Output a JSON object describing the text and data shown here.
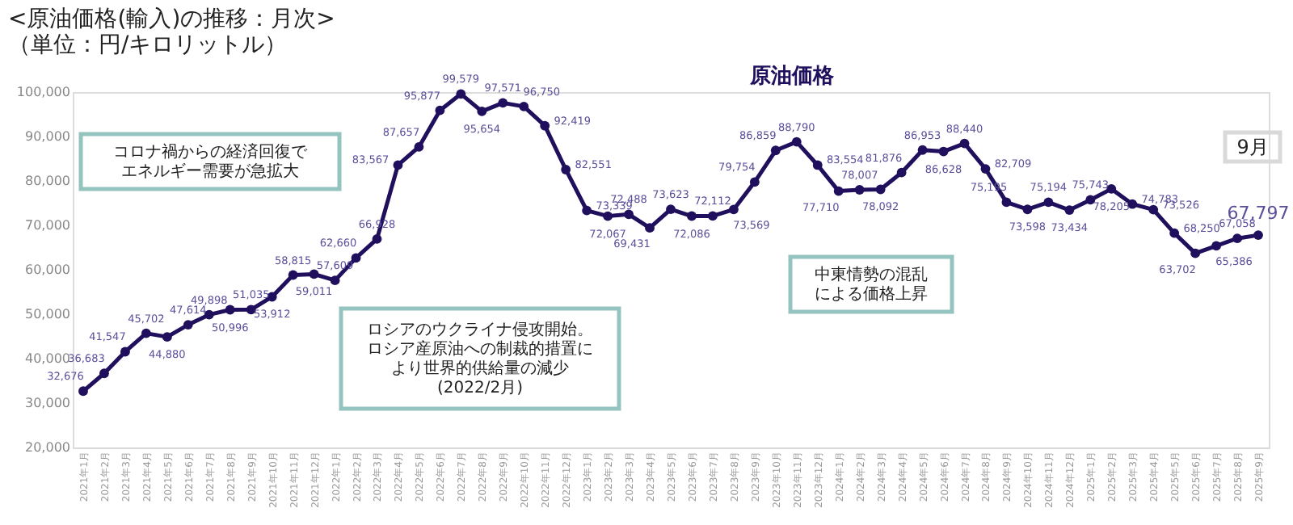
{
  "chart_data": {
    "type": "line",
    "title": [
      "<原油価格(輸入)の推移：月次>",
      "（単位：円/キロリットル）"
    ],
    "categories": [
      "2021年1月",
      "2021年2月",
      "2021年3月",
      "2021年4月",
      "2021年5月",
      "2021年6月",
      "2021年7月",
      "2021年8月",
      "2021年9月",
      "2021年10月",
      "2021年11月",
      "2021年12月",
      "2022年1月",
      "2022年2月",
      "2022年3月",
      "2022年4月",
      "2022年5月",
      "2022年6月",
      "2022年7月",
      "2022年8月",
      "2022年9月",
      "2022年10月",
      "2022年11月",
      "2022年12月",
      "2023年1月",
      "2023年2月",
      "2023年3月",
      "2023年4月",
      "2023年5月",
      "2023年6月",
      "2023年7月",
      "2023年8月",
      "2023年9月",
      "2023年10月",
      "2023年11月",
      "2023年12月",
      "2024年1月",
      "2024年2月",
      "2024年3月",
      "2024年4月",
      "2024年5月",
      "2024年6月",
      "2024年7月",
      "2024年8月",
      "2024年9月",
      "2024年10月",
      "2024年11月",
      "2024年12月",
      "2025年1月",
      "2025年2月",
      "2025年3月",
      "2025年4月",
      "2025年5月",
      "2025年6月",
      "2025年7月",
      "2025年8月",
      "2025年9月"
    ],
    "series": [
      {
        "name": "原油価格",
        "color": "#1f0f5c",
        "values": [
          32676,
          36683,
          41547,
          45702,
          44880,
          47614,
          49898,
          50996,
          51035,
          53912,
          58815,
          59011,
          57609,
          62660,
          66928,
          83567,
          87657,
          95877,
          99579,
          95654,
          97571,
          96750,
          92419,
          82551,
          73339,
          72067,
          72488,
          69431,
          73623,
          72086,
          72112,
          73569,
          79754,
          86859,
          88790,
          83554,
          77710,
          78007,
          78092,
          81876,
          86953,
          86628,
          88440,
          82709,
          75195,
          73598,
          75194,
          73434,
          75743,
          78205,
          74783,
          73526,
          68250,
          63702,
          65386,
          67058,
          67797
        ],
        "value_labels": [
          "32,676",
          "36,683",
          "41,547",
          "45,702",
          "44,880",
          "47,614",
          "49,898",
          "50,996",
          "51,035",
          "53,912",
          "58,815",
          "59,011",
          "57,609",
          "62,660",
          "66,928",
          "83,567",
          "87,657",
          "95,877",
          "99,579",
          "95,654",
          "97,571",
          "96,750",
          "92,419",
          "82,551",
          "73,339",
          "72,067",
          "72,488",
          "69,431",
          "73,623",
          "72,086",
          "72,112",
          "73,569",
          "79,754",
          "86,859",
          "88,790",
          "83,554",
          "77,710",
          "78,007",
          "78,092",
          "81,876",
          "86,953",
          "86,628",
          "88,440",
          "82,709",
          "75,195",
          "73,598",
          "75,194",
          "73,434",
          "75,743",
          "78,205",
          "74,783",
          "73,526",
          "68,250",
          "63,702",
          "65,386",
          "67,058",
          "67,797"
        ]
      }
    ],
    "ylim": [
      20000,
      100000
    ],
    "yticks": [
      {
        "value": 20000,
        "label": "20,000"
      },
      {
        "value": 30000,
        "label": "30,000"
      },
      {
        "value": 40000,
        "label": "40,000"
      },
      {
        "value": 50000,
        "label": "50,000"
      },
      {
        "value": 60000,
        "label": "60,000"
      },
      {
        "value": 70000,
        "label": "70,000"
      },
      {
        "value": 80000,
        "label": "80,000"
      },
      {
        "value": 90000,
        "label": "90,000"
      },
      {
        "value": 100000,
        "label": "100,000"
      }
    ],
    "marker": "circle",
    "line_style": "solid",
    "annotations": [
      "コロナ禍からの経済回復でエネルギー需要が急拡大",
      "ロシアのウクライナ侵攻開始。ロシア産原油への制裁的措置により世界的供給量の減少(2022/2月)",
      "中東情勢の混乱による価格上昇",
      "9月"
    ]
  }
}
